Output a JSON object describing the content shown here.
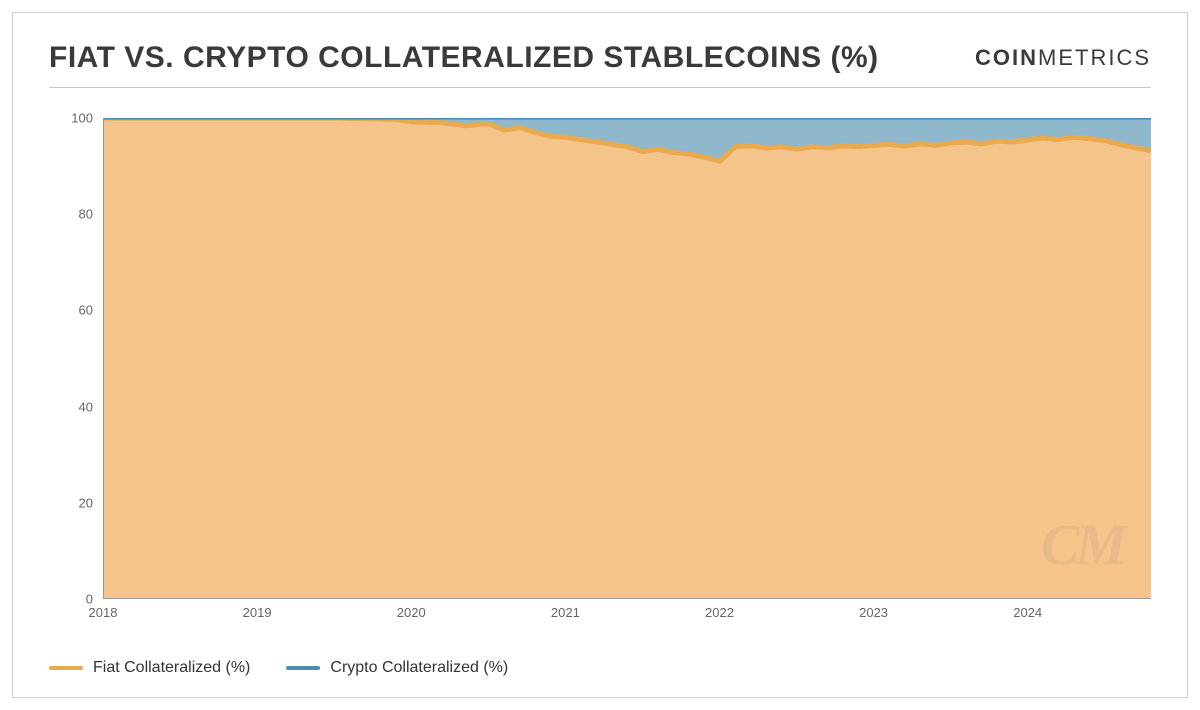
{
  "header": {
    "title": "FIAT VS. CRYPTO COLLATERALIZED STABLECOINS (%)",
    "logo_bold": "COIN",
    "logo_thin": "METRICS"
  },
  "chart": {
    "type": "stacked-area",
    "ylim": [
      0,
      100
    ],
    "yticks": [
      0,
      20,
      40,
      60,
      80,
      100
    ],
    "x_start_year": 2018,
    "x_end_year": 2024.8,
    "xticks": [
      2018,
      2019,
      2020,
      2021,
      2022,
      2023,
      2024
    ],
    "colors": {
      "fiat_fill": "#f5c48a",
      "fiat_stroke": "#e8a94f",
      "crypto_fill": "#8fb8cc",
      "crypto_stroke": "#4a8db0",
      "axis": "#999999",
      "text": "#666666",
      "background": "#ffffff"
    },
    "fiat_pct": [
      [
        2018.0,
        100
      ],
      [
        2018.2,
        100
      ],
      [
        2018.5,
        100
      ],
      [
        2019.0,
        100
      ],
      [
        2019.5,
        100
      ],
      [
        2019.9,
        99.7
      ],
      [
        2020.0,
        99.2
      ],
      [
        2020.2,
        99.0
      ],
      [
        2020.35,
        98.4
      ],
      [
        2020.5,
        98.8
      ],
      [
        2020.6,
        97.5
      ],
      [
        2020.7,
        98.0
      ],
      [
        2020.8,
        97.0
      ],
      [
        2020.9,
        96.2
      ],
      [
        2021.0,
        96.0
      ],
      [
        2021.1,
        95.5
      ],
      [
        2021.2,
        95.0
      ],
      [
        2021.3,
        94.5
      ],
      [
        2021.4,
        94.0
      ],
      [
        2021.5,
        93.0
      ],
      [
        2021.6,
        93.5
      ],
      [
        2021.7,
        92.8
      ],
      [
        2021.8,
        92.5
      ],
      [
        2021.9,
        91.8
      ],
      [
        2022.0,
        91.0
      ],
      [
        2022.05,
        92.5
      ],
      [
        2022.1,
        94.0
      ],
      [
        2022.2,
        94.2
      ],
      [
        2022.3,
        93.8
      ],
      [
        2022.4,
        94.0
      ],
      [
        2022.5,
        93.5
      ],
      [
        2022.6,
        94.0
      ],
      [
        2022.7,
        93.8
      ],
      [
        2022.8,
        94.2
      ],
      [
        2022.9,
        94.0
      ],
      [
        2023.0,
        94.3
      ],
      [
        2023.1,
        94.5
      ],
      [
        2023.2,
        94.2
      ],
      [
        2023.3,
        94.6
      ],
      [
        2023.4,
        94.3
      ],
      [
        2023.5,
        94.8
      ],
      [
        2023.6,
        95.0
      ],
      [
        2023.7,
        94.6
      ],
      [
        2023.8,
        95.2
      ],
      [
        2023.9,
        95.0
      ],
      [
        2024.0,
        95.5
      ],
      [
        2024.1,
        95.8
      ],
      [
        2024.2,
        95.5
      ],
      [
        2024.3,
        96.0
      ],
      [
        2024.4,
        95.7
      ],
      [
        2024.5,
        95.3
      ],
      [
        2024.6,
        94.5
      ],
      [
        2024.7,
        93.8
      ],
      [
        2024.8,
        93.2
      ]
    ],
    "watermark": "CM"
  },
  "legend": {
    "fiat": "Fiat Collateralized (%)",
    "crypto": "Crypto Collateralized (%)"
  },
  "typography": {
    "title_fontsize": 30,
    "axis_fontsize": 13,
    "legend_fontsize": 16
  }
}
